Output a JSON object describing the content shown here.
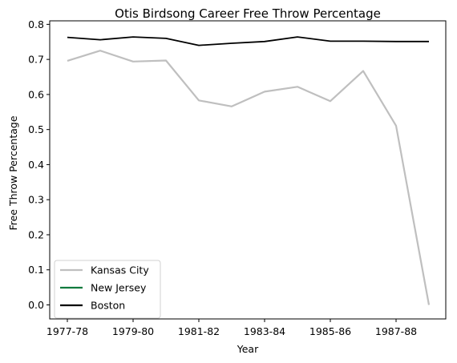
{
  "chart_data": {
    "type": "line",
    "title": "Otis Birdsong Career Free Throw Percentage",
    "xlabel": "Year",
    "ylabel": "Free Throw Percentage",
    "x_tick_labels": [
      "1977-78",
      "1979-80",
      "1981-82",
      "1983-84",
      "1985-86",
      "1987-88"
    ],
    "y_tick_labels": [
      "0.0",
      "0.1",
      "0.2",
      "0.3",
      "0.4",
      "0.5",
      "0.6",
      "0.7",
      "0.8"
    ],
    "ylim": [
      -0.04,
      0.81
    ],
    "grid": false,
    "legend_position": "lower-left",
    "series": [
      {
        "name": "Kansas City",
        "color": "#bfbfbf",
        "values": [
          0.696,
          0.725,
          0.694,
          0.697,
          0.583,
          0.566,
          0.608,
          0.622,
          0.581,
          0.667,
          0.511,
          0.0
        ]
      },
      {
        "name": "New Jersey",
        "color": "#107a3e",
        "values": []
      },
      {
        "name": "Boston",
        "color": "#000000",
        "values": [
          0.763,
          0.756,
          0.764,
          0.76,
          0.74,
          0.746,
          0.751,
          0.764,
          0.752,
          0.752,
          0.751,
          0.751
        ]
      }
    ]
  }
}
